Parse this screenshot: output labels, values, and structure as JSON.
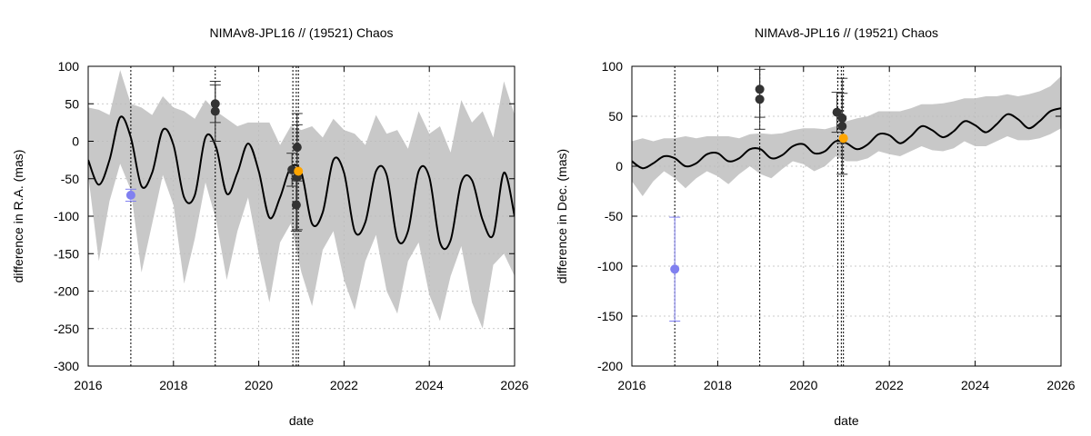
{
  "chart_data": [
    {
      "type": "line",
      "title": "NIMAv8-JPL16 // (19521) Chaos",
      "xlabel": "date",
      "ylabel": "difference in R.A. (mas)",
      "xlim": [
        2016,
        2026
      ],
      "ylim": [
        -300,
        100
      ],
      "xticks": [
        2016,
        2018,
        2020,
        2022,
        2024,
        2026
      ],
      "yticks": [
        -300,
        -250,
        -200,
        -150,
        -100,
        -50,
        0,
        50,
        100
      ],
      "grid": true,
      "model": {
        "color": "#000000",
        "band_color": "#c8c8c8",
        "x": [
          2016.0,
          2016.25,
          2016.5,
          2016.75,
          2017.0,
          2017.25,
          2017.5,
          2017.75,
          2018.0,
          2018.25,
          2018.5,
          2018.75,
          2019.0,
          2019.25,
          2019.5,
          2019.75,
          2020.0,
          2020.25,
          2020.5,
          2020.75,
          2021.0,
          2021.25,
          2021.5,
          2021.75,
          2022.0,
          2022.25,
          2022.5,
          2022.75,
          2023.0,
          2023.25,
          2023.5,
          2023.75,
          2024.0,
          2024.25,
          2024.5,
          2024.75,
          2025.0,
          2025.25,
          2025.5,
          2025.75,
          2026.0
        ],
        "y": [
          -25,
          -58,
          -25,
          32,
          5,
          -60,
          -42,
          15,
          -5,
          -75,
          -72,
          5,
          -8,
          -70,
          -42,
          -3,
          -40,
          -102,
          -75,
          -35,
          -42,
          -110,
          -95,
          -25,
          -42,
          -120,
          -108,
          -40,
          -45,
          -130,
          -120,
          -40,
          -48,
          -135,
          -132,
          -55,
          -52,
          -105,
          -125,
          -42,
          -100
        ],
        "y_low": [
          -45,
          -160,
          -80,
          -30,
          -65,
          -175,
          -110,
          -45,
          -85,
          -190,
          -130,
          -55,
          -105,
          -185,
          -120,
          -75,
          -150,
          -215,
          -135,
          -110,
          -175,
          -220,
          -145,
          -120,
          -185,
          -225,
          -160,
          -125,
          -200,
          -230,
          -160,
          -135,
          -205,
          -240,
          -180,
          -140,
          -215,
          -250,
          -165,
          -150,
          -180
        ],
        "y_high": [
          45,
          42,
          35,
          95,
          50,
          45,
          35,
          60,
          45,
          40,
          30,
          55,
          40,
          30,
          20,
          25,
          25,
          25,
          -5,
          20,
          15,
          20,
          5,
          30,
          15,
          10,
          -5,
          35,
          10,
          15,
          -10,
          40,
          10,
          20,
          -15,
          55,
          25,
          40,
          5,
          80,
          35
        ]
      },
      "series": [
        {
          "name": "",
          "color": "#333333",
          "x": [
            2018.98,
            2018.98,
            2020.78,
            2020.9,
            2020.9,
            2020.88
          ],
          "y": [
            50,
            40,
            -38,
            -8,
            -48,
            -85
          ],
          "yerr": [
            25,
            40,
            22,
            45,
            70,
            35
          ]
        },
        {
          "name": "",
          "color": "#8080f0",
          "x": [
            2017.0
          ],
          "y": [
            -72
          ],
          "yerr": [
            8
          ]
        },
        {
          "name": "",
          "color": "#ffa500",
          "x": [
            2020.93
          ],
          "y": [
            -40
          ],
          "yerr": [
            0
          ]
        }
      ],
      "vlines": [
        2017.0,
        2018.98,
        2020.8,
        2020.88,
        2020.93
      ]
    },
    {
      "type": "line",
      "title": "NIMAv8-JPL16 // (19521) Chaos",
      "xlabel": "date",
      "ylabel": "difference in Dec. (mas)",
      "xlim": [
        2016,
        2026
      ],
      "ylim": [
        -200,
        100
      ],
      "xticks": [
        2016,
        2018,
        2020,
        2022,
        2024,
        2026
      ],
      "yticks": [
        -200,
        -150,
        -100,
        -50,
        0,
        50,
        100
      ],
      "grid": true,
      "model": {
        "color": "#000000",
        "band_color": "#c8c8c8",
        "x": [
          2016.0,
          2016.25,
          2016.5,
          2016.75,
          2017.0,
          2017.25,
          2017.5,
          2017.75,
          2018.0,
          2018.25,
          2018.5,
          2018.75,
          2019.0,
          2019.25,
          2019.5,
          2019.75,
          2020.0,
          2020.25,
          2020.5,
          2020.75,
          2021.0,
          2021.25,
          2021.5,
          2021.75,
          2022.0,
          2022.25,
          2022.5,
          2022.75,
          2023.0,
          2023.25,
          2023.5,
          2023.75,
          2024.0,
          2024.25,
          2024.5,
          2024.75,
          2025.0,
          2025.25,
          2025.5,
          2025.75,
          2026.0
        ],
        "y": [
          5,
          -2,
          3,
          10,
          8,
          0,
          3,
          12,
          13,
          5,
          8,
          17,
          17,
          8,
          11,
          20,
          22,
          13,
          15,
          25,
          23,
          17,
          22,
          32,
          31,
          23,
          30,
          40,
          36,
          29,
          35,
          45,
          41,
          34,
          42,
          52,
          47,
          38,
          45,
          55,
          58
        ],
        "y_low": [
          -15,
          -30,
          -15,
          -5,
          -12,
          -22,
          -12,
          -5,
          -10,
          -18,
          -8,
          0,
          -8,
          -12,
          -3,
          5,
          2,
          -5,
          0,
          10,
          5,
          5,
          8,
          15,
          12,
          10,
          15,
          20,
          16,
          15,
          18,
          25,
          20,
          20,
          25,
          30,
          26,
          26,
          28,
          32,
          38
        ],
        "y_high": [
          25,
          28,
          25,
          28,
          28,
          30,
          28,
          30,
          30,
          30,
          28,
          32,
          33,
          32,
          33,
          36,
          38,
          38,
          37,
          40,
          45,
          48,
          50,
          55,
          55,
          55,
          58,
          62,
          62,
          63,
          65,
          68,
          68,
          70,
          70,
          72,
          70,
          72,
          75,
          80,
          90
        ]
      },
      "series": [
        {
          "name": "",
          "color": "#333333",
          "x": [
            2018.98,
            2018.98,
            2020.78,
            2020.9,
            2020.9
          ],
          "y": [
            77,
            67,
            54,
            48,
            40
          ],
          "yerr": [
            28,
            30,
            20,
            25,
            48
          ]
        },
        {
          "name": "",
          "color": "#8080f0",
          "x": [
            2017.0
          ],
          "y": [
            -103
          ],
          "yerr": [
            52
          ]
        },
        {
          "name": "",
          "color": "#ffa500",
          "x": [
            2020.93
          ],
          "y": [
            28
          ],
          "yerr": [
            0
          ]
        }
      ],
      "vlines": [
        2017.0,
        2018.98,
        2020.8,
        2020.88,
        2020.93
      ]
    }
  ]
}
